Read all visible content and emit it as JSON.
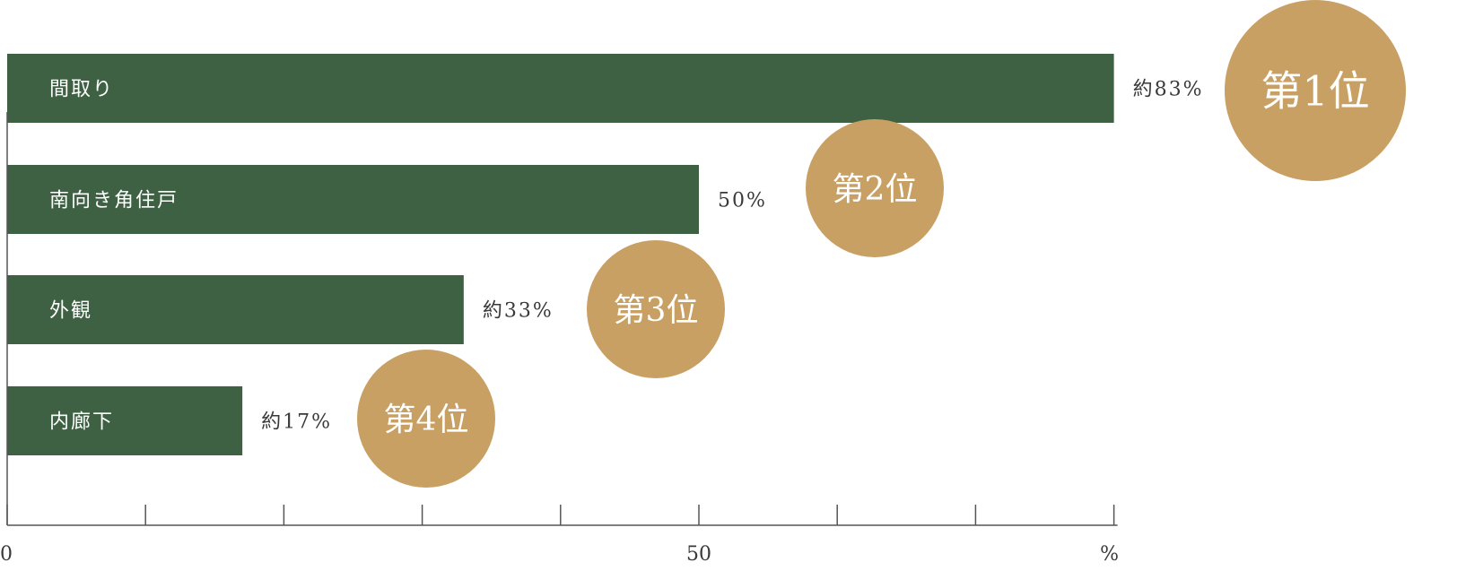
{
  "chart_data": {
    "type": "bar",
    "orientation": "horizontal",
    "categories": [
      "間取り",
      "南向き角住戸",
      "外観",
      "内廊下"
    ],
    "values": [
      83,
      50,
      33,
      17
    ],
    "value_labels": [
      "約83%",
      "50%",
      "約33%",
      "約17%"
    ],
    "rank_labels": [
      "第1位",
      "第2位",
      "第3位",
      "第4位"
    ],
    "xlim": [
      0,
      80
    ],
    "x_tick_labels": [
      "0",
      "50",
      "%"
    ],
    "grid": false,
    "colors": {
      "bar": "#3d6142",
      "badge": "#c8a064",
      "axis": "#555555"
    }
  }
}
